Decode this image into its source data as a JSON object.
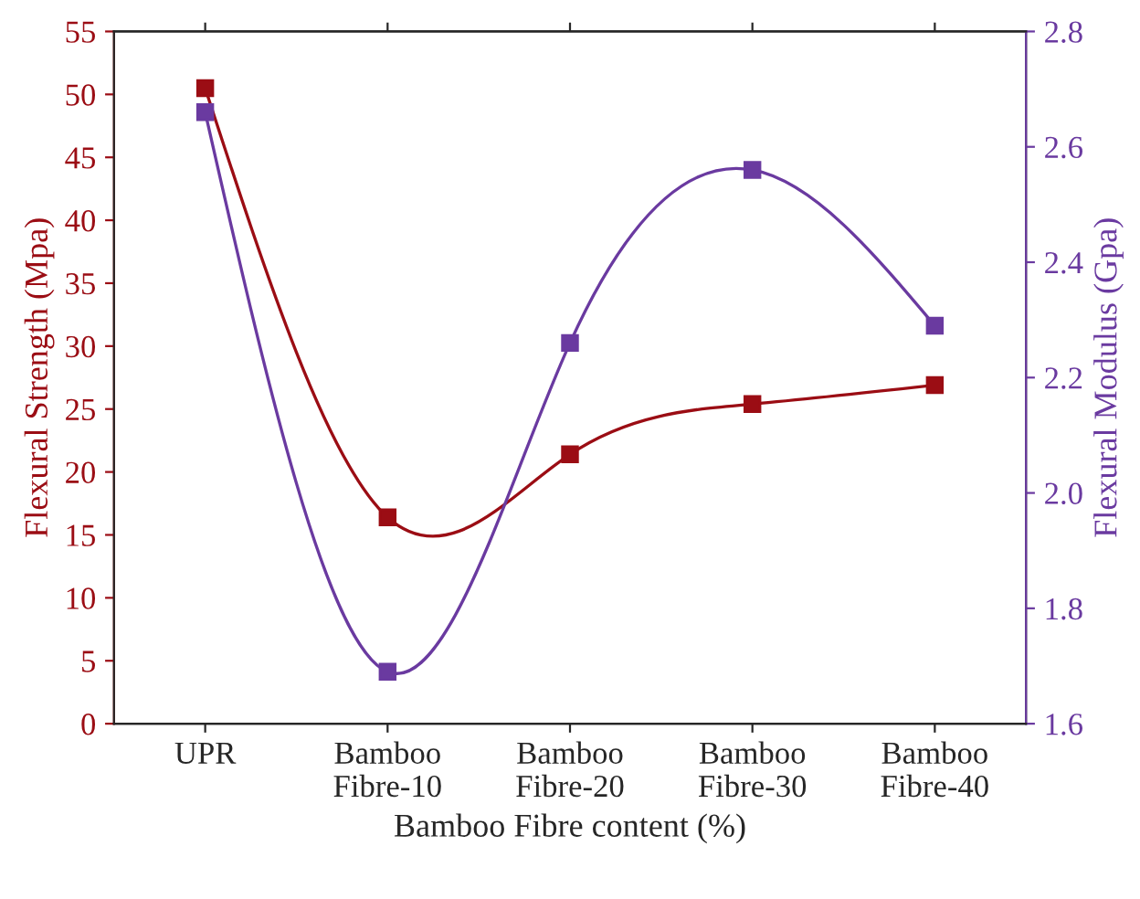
{
  "chart_data": {
    "type": "line",
    "xlabel": "Bamboo Fibre content (%)",
    "ylabel": "Flexural Strength (Mpa)",
    "y2label": "Flexural Modulus (Gpa)",
    "categories": [
      "UPR",
      "Bamboo\nFibre-10",
      "Bamboo\nFibre-20",
      "Bamboo\nFibre-30",
      "Bamboo\nFibre-40"
    ],
    "series": [
      {
        "color": "#9b0d14",
        "values": [
          50.5,
          16.4,
          21.4,
          25.4,
          26.9
        ]
      },
      {
        "color": "#6a3aa0",
        "axis": "y2",
        "values": [
          2.66,
          1.69,
          2.26,
          2.56,
          2.29
        ]
      }
    ],
    "ylim": [
      0,
      55
    ],
    "yticks": [
      0,
      5,
      10,
      15,
      20,
      25,
      30,
      35,
      40,
      45,
      50,
      55
    ],
    "y2lim": [
      1.6,
      2.8
    ],
    "y2ticks": [
      {
        "value": 1.6,
        "label": "1.6"
      },
      {
        "value": 1.8,
        "label": "1.8"
      },
      {
        "value": 2.0,
        "label": "2.0"
      },
      {
        "value": 2.2,
        "label": "2.2"
      },
      {
        "value": 2.4,
        "label": "2.4"
      },
      {
        "value": 2.6,
        "label": "2.6"
      },
      {
        "value": 2.8,
        "label": "2.8"
      }
    ],
    "grid": false,
    "legend": false,
    "marker": "square",
    "line_style": "solid"
  }
}
